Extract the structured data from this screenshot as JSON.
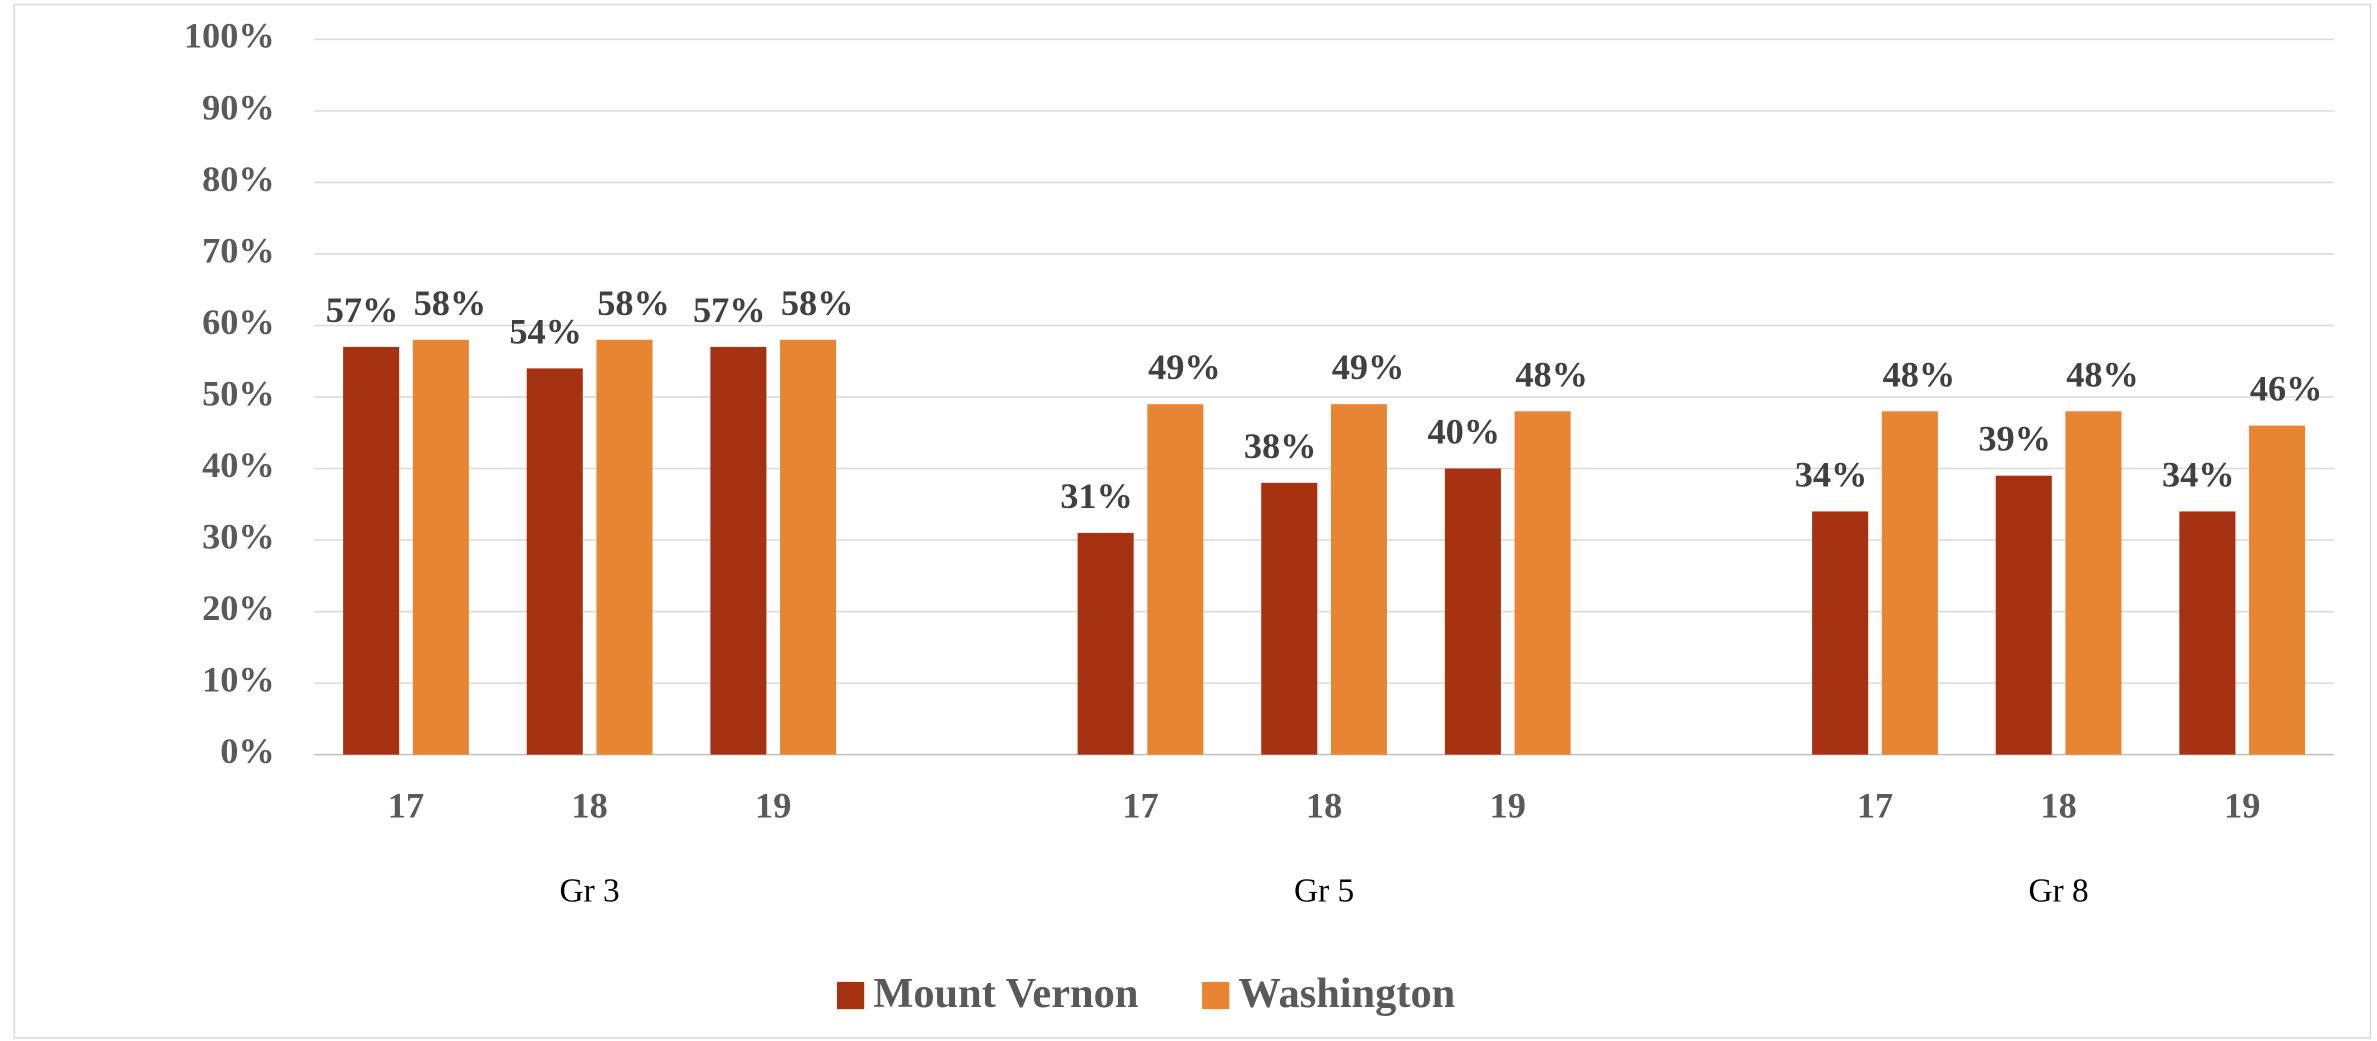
{
  "chart_data": {
    "type": "bar",
    "categories": [
      "17",
      "18",
      "19",
      "17",
      "18",
      "19",
      "17",
      "18",
      "19"
    ],
    "groups": [
      "Gr 3",
      "Gr 5",
      "Gr 8"
    ],
    "series": [
      {
        "name": "Mount Vernon",
        "color": "#a63212",
        "values": [
          57,
          54,
          57,
          31,
          38,
          40,
          34,
          39,
          34
        ],
        "value_labels": [
          "57%",
          "54%",
          "57%",
          "31%",
          "38%",
          "40%",
          "34%",
          "39%",
          "34%"
        ]
      },
      {
        "name": "Washington",
        "color": "#e88532",
        "values": [
          58,
          58,
          58,
          49,
          49,
          48,
          48,
          48,
          46
        ],
        "value_labels": [
          "58%",
          "58%",
          "58%",
          "49%",
          "49%",
          "48%",
          "48%",
          "48%",
          "46%"
        ]
      }
    ],
    "ylim": [
      0,
      100
    ],
    "yticks": [
      {
        "value": 0,
        "label": "0%"
      },
      {
        "value": 10,
        "label": "10%"
      },
      {
        "value": 20,
        "label": "20%"
      },
      {
        "value": 30,
        "label": "30%"
      },
      {
        "value": 40,
        "label": "40%"
      },
      {
        "value": 50,
        "label": "50%"
      },
      {
        "value": 60,
        "label": "60%"
      },
      {
        "value": 70,
        "label": "70%"
      },
      {
        "value": 80,
        "label": "80%"
      },
      {
        "value": 90,
        "label": "90%"
      },
      {
        "value": 100,
        "label": "100%"
      }
    ],
    "grid": true,
    "legend": "bottom"
  }
}
